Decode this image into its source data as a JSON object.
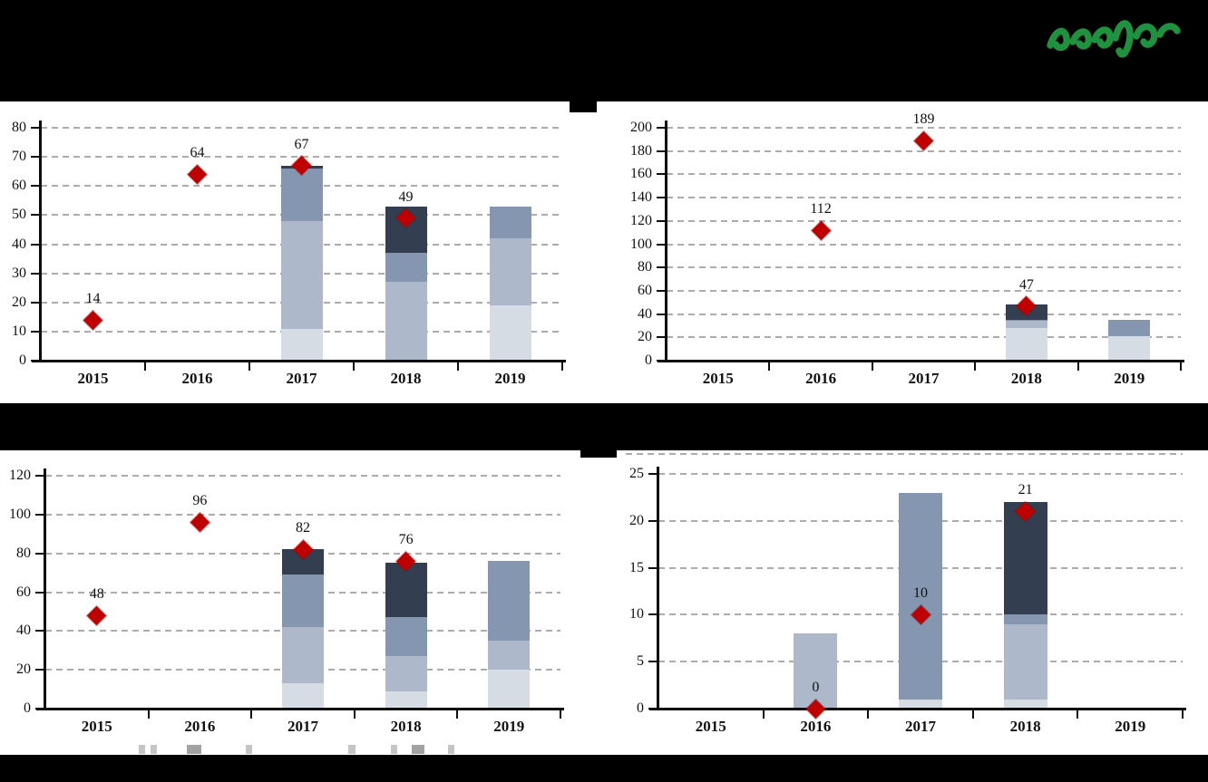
{
  "page": {
    "background": "#ffffff"
  },
  "header": {
    "bar_color": "#000000",
    "logo": {
      "description": "green-script-wordmark",
      "color": "#1F9240"
    }
  },
  "redaction_color": "#000000",
  "marker_color": "#C00000",
  "gridline_color": "#ACACAC",
  "chart_data": [
    {
      "id": "top_left",
      "type": "bar",
      "subtype": "stacked-bars-with-diamond-markers",
      "title": "(redacted)",
      "categories": [
        "2015",
        "2016",
        "2017",
        "2018",
        "2019"
      ],
      "ylim": [
        0,
        80
      ],
      "ystep": 10,
      "grid": "dashed-horizontal",
      "legend": "hidden",
      "stack_colors": [
        "#D6DCE4",
        "#ADB9CA",
        "#8496B0",
        "#333F50"
      ],
      "series": [
        {
          "name": "segment-1",
          "values": [
            0,
            0,
            11,
            0,
            19
          ]
        },
        {
          "name": "segment-2",
          "values": [
            0,
            0,
            37,
            27,
            23
          ]
        },
        {
          "name": "segment-3",
          "values": [
            0,
            0,
            18,
            10,
            11
          ]
        },
        {
          "name": "segment-4",
          "values": [
            0,
            0,
            1,
            16,
            0
          ]
        }
      ],
      "markers": {
        "shape": "diamond",
        "color": "#C00000",
        "values": [
          14,
          64,
          67,
          49,
          null
        ],
        "labels": [
          "14",
          "64",
          "67",
          "49",
          ""
        ]
      }
    },
    {
      "id": "top_right",
      "type": "bar",
      "subtype": "stacked-bars-with-diamond-markers",
      "title": "(redacted)",
      "categories": [
        "2015",
        "2016",
        "2017",
        "2018",
        "2019"
      ],
      "ylim": [
        0,
        200
      ],
      "ystep": 20,
      "grid": "dashed-horizontal",
      "legend": "hidden",
      "stack_colors": [
        "#D6DCE4",
        "#ADB9CA",
        "#8496B0",
        "#333F50"
      ],
      "series": [
        {
          "name": "segment-1",
          "values": [
            0,
            0,
            0,
            28,
            21
          ]
        },
        {
          "name": "segment-2",
          "values": [
            0,
            0,
            0,
            6,
            0
          ]
        },
        {
          "name": "segment-3",
          "values": [
            0,
            0,
            0,
            1,
            14
          ]
        },
        {
          "name": "segment-4",
          "values": [
            0,
            0,
            0,
            13,
            0
          ]
        }
      ],
      "markers": {
        "shape": "diamond",
        "color": "#C00000",
        "values": [
          null,
          112,
          189,
          47,
          null
        ],
        "labels": [
          "",
          "112",
          "189",
          "47",
          ""
        ]
      }
    },
    {
      "id": "bottom_left",
      "type": "bar",
      "subtype": "stacked-bars-with-diamond-markers",
      "title": "(redacted)",
      "categories": [
        "2015",
        "2016",
        "2017",
        "2018",
        "2019"
      ],
      "ylim": [
        0,
        120
      ],
      "ystep": 20,
      "grid": "dashed-horizontal",
      "legend": "partially-visible-cropped",
      "stack_colors": [
        "#D6DCE4",
        "#ADB9CA",
        "#8496B0",
        "#333F50"
      ],
      "series": [
        {
          "name": "segment-1",
          "values": [
            0,
            0,
            13,
            9,
            20
          ]
        },
        {
          "name": "segment-2",
          "values": [
            0,
            0,
            29,
            18,
            15
          ]
        },
        {
          "name": "segment-3",
          "values": [
            0,
            0,
            27,
            20,
            41
          ]
        },
        {
          "name": "segment-4",
          "values": [
            0,
            0,
            13,
            28,
            0
          ]
        }
      ],
      "markers": {
        "shape": "diamond",
        "color": "#C00000",
        "values": [
          48,
          96,
          82,
          76,
          null
        ],
        "labels": [
          "48",
          "96",
          "82",
          "76",
          ""
        ]
      }
    },
    {
      "id": "bottom_right",
      "type": "bar",
      "subtype": "stacked-bars-with-diamond-markers",
      "title": "(redacted)",
      "categories": [
        "2015",
        "2016",
        "2017",
        "2018",
        "2019"
      ],
      "ylim": [
        0,
        25
      ],
      "ystep": 5,
      "grid": "dashed-horizontal",
      "legend": "hidden",
      "stack_colors": [
        "#D6DCE4",
        "#ADB9CA",
        "#8496B0",
        "#333F50"
      ],
      "series": [
        {
          "name": "segment-1",
          "values": [
            0,
            0,
            1,
            1,
            0
          ]
        },
        {
          "name": "segment-2",
          "values": [
            0,
            8,
            0,
            8,
            0
          ]
        },
        {
          "name": "segment-3",
          "values": [
            0,
            0,
            22,
            1,
            0
          ]
        },
        {
          "name": "segment-4",
          "values": [
            0,
            0,
            0,
            12,
            0
          ]
        }
      ],
      "markers": {
        "shape": "diamond",
        "color": "#C00000",
        "values": [
          null,
          0,
          10,
          21,
          null
        ],
        "labels": [
          "",
          "0",
          "10",
          "21",
          ""
        ]
      }
    }
  ]
}
